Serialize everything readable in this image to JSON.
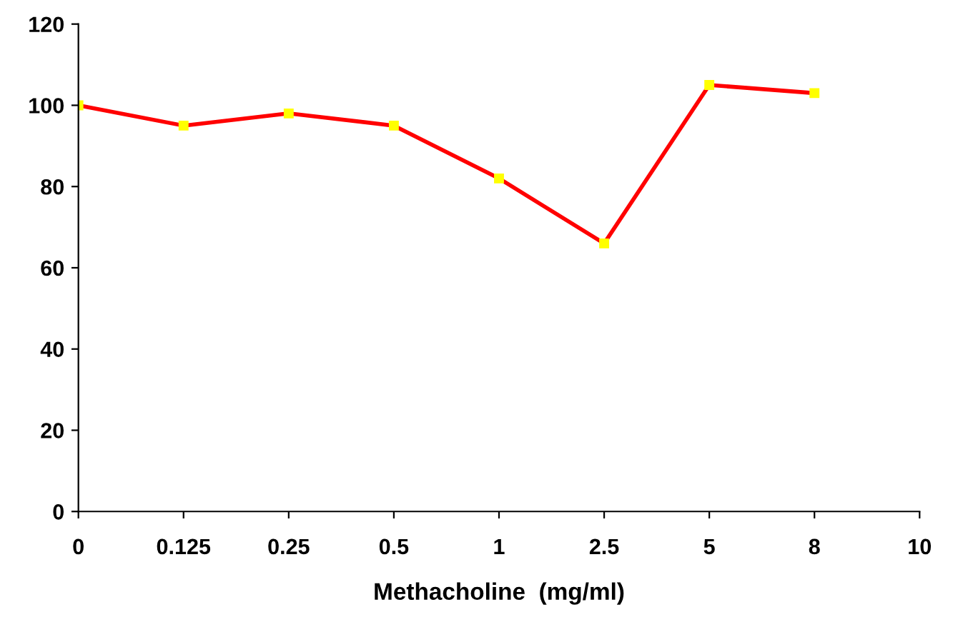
{
  "chart_data": {
    "type": "line",
    "xlabel": "Methacholine  (mg/ml)",
    "categories": [
      "0",
      "0.125",
      "0.25",
      "0.5",
      "1",
      "2.5",
      "5",
      "8",
      "10"
    ],
    "series": [
      {
        "color": "#ff0000",
        "values": [
          100,
          95,
          98,
          95,
          82,
          66,
          105,
          103,
          null
        ]
      }
    ],
    "ylim": [
      0,
      120
    ],
    "yticks": [
      0,
      20,
      40,
      60,
      80,
      100,
      120
    ],
    "grid": false,
    "legend": false,
    "marker": "square",
    "line_style": "solid"
  }
}
